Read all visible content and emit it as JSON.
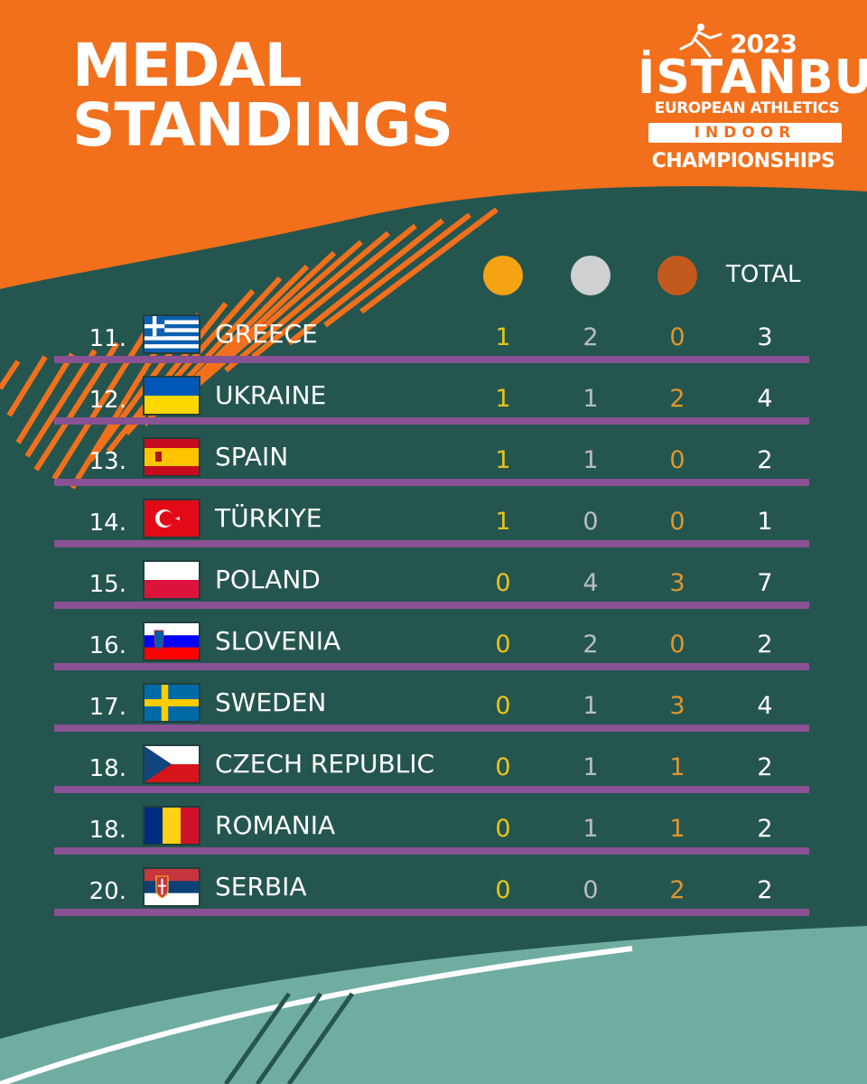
{
  "header": {
    "title_line1": "MEDAL",
    "title_line2": "STANDINGS"
  },
  "logo": {
    "year": "2023",
    "city": "İSTANBUL",
    "org": "EUROPEAN ATHLETICS",
    "event_type": "INDOOR",
    "event": "CHAMPIONSHIPS"
  },
  "columns": {
    "total_label": "TOTAL",
    "gold_color": "#f5a213",
    "silver_color": "#cfd0d2",
    "bronze_color": "#c25a1e"
  },
  "colors": {
    "orange": "#f26f1c",
    "teal": "#24564f",
    "light_teal": "#6fada0",
    "divider": "#8a5294"
  },
  "standings": [
    {
      "rank": "11.",
      "country": "GREECE",
      "flag": "greece-flag",
      "gold": "1",
      "silver": "2",
      "bronze": "0",
      "total": "3"
    },
    {
      "rank": "12.",
      "country": "UKRAINE",
      "flag": "ukraine-flag",
      "gold": "1",
      "silver": "1",
      "bronze": "2",
      "total": "4"
    },
    {
      "rank": "13.",
      "country": "SPAIN",
      "flag": "spain-flag",
      "gold": "1",
      "silver": "1",
      "bronze": "0",
      "total": "2"
    },
    {
      "rank": "14.",
      "country": "TÜRKIYE",
      "flag": "turkiye-flag",
      "gold": "1",
      "silver": "0",
      "bronze": "0",
      "total": "1"
    },
    {
      "rank": "15.",
      "country": "POLAND",
      "flag": "poland-flag",
      "gold": "0",
      "silver": "4",
      "bronze": "3",
      "total": "7"
    },
    {
      "rank": "16.",
      "country": "SLOVENIA",
      "flag": "slovenia-flag",
      "gold": "0",
      "silver": "2",
      "bronze": "0",
      "total": "2"
    },
    {
      "rank": "17.",
      "country": "SWEDEN",
      "flag": "sweden-flag",
      "gold": "0",
      "silver": "1",
      "bronze": "3",
      "total": "4"
    },
    {
      "rank": "18.",
      "country": "CZECH REPUBLIC",
      "flag": "czech-republic-flag",
      "gold": "0",
      "silver": "1",
      "bronze": "1",
      "total": "2"
    },
    {
      "rank": "18.",
      "country": "ROMANIA",
      "flag": "romania-flag",
      "gold": "0",
      "silver": "1",
      "bronze": "1",
      "total": "2"
    },
    {
      "rank": "20.",
      "country": "SERBIA",
      "flag": "serbia-flag",
      "gold": "0",
      "silver": "0",
      "bronze": "2",
      "total": "2"
    }
  ]
}
